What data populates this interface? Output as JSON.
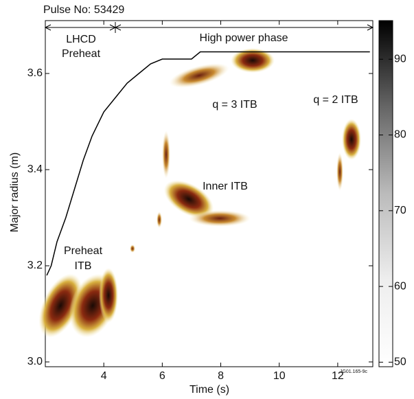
{
  "chart_data": {
    "type": "line",
    "title": "Pulse No: 53429",
    "x_label": "Time (s)",
    "y_label": "Major radius (m)",
    "xlim": [
      2,
      13.2
    ],
    "xticks": [
      4,
      6,
      8,
      10,
      12
    ],
    "ylim": [
      2.99,
      3.71
    ],
    "yticks": [
      {
        "value": 3.0,
        "label": "3.0"
      },
      {
        "value": 3.2,
        "label": "3.2"
      },
      {
        "value": 3.4,
        "label": "3.4"
      },
      {
        "value": 3.6,
        "label": "3.6"
      }
    ],
    "series": [
      {
        "color": "#000000",
        "x": [
          2.05,
          2.2,
          2.4,
          2.7,
          3.0,
          3.3,
          3.6,
          4.0,
          4.4,
          4.8,
          5.2,
          5.6,
          6.0,
          7.0,
          7.3,
          13.1
        ],
        "values": [
          3.18,
          3.2,
          3.25,
          3.3,
          3.36,
          3.42,
          3.47,
          3.52,
          3.55,
          3.58,
          3.6,
          3.62,
          3.63,
          3.63,
          3.645,
          3.645
        ]
      }
    ],
    "colorbar": {
      "lim": [
        49.4,
        95.1
      ],
      "ticks": [
        50,
        60,
        70,
        80,
        90
      ]
    },
    "annotations": [
      "LHCD",
      "Preheat",
      "High power phase",
      "q = 3 ITB",
      "q = 2 ITB",
      "Inner ITB",
      "Preheat",
      "ITB"
    ],
    "image_code": "JG01.165-9c"
  }
}
